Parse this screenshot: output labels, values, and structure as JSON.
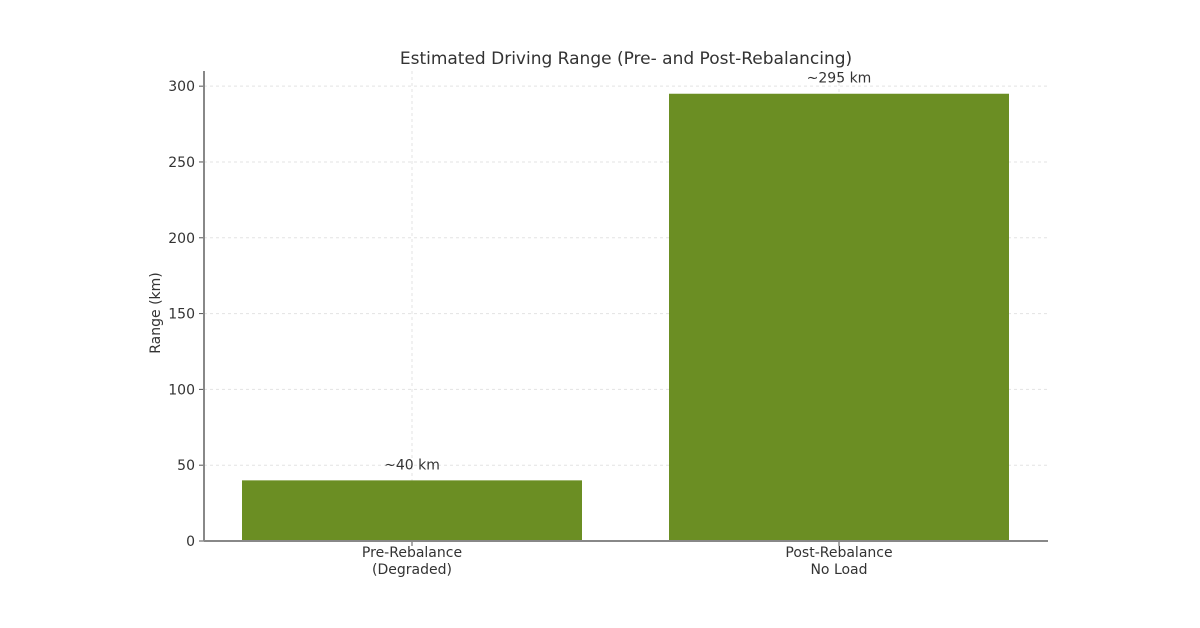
{
  "chart_data": {
    "type": "bar",
    "title": "Estimated Driving Range (Pre- and Post-Rebalancing)",
    "xlabel": "",
    "ylabel": "Range (km)",
    "ylim": [
      0,
      310
    ],
    "yticks": [
      0,
      50,
      100,
      150,
      200,
      250,
      300
    ],
    "categories": [
      [
        "Pre-Rebalance",
        "(Degraded)"
      ],
      [
        "Post-Rebalance",
        "No Load"
      ]
    ],
    "values": [
      40,
      295
    ],
    "data_labels": [
      "~40 km",
      "~295 km"
    ],
    "bar_color": "#6b8e23",
    "grid": true,
    "legend": "none"
  }
}
